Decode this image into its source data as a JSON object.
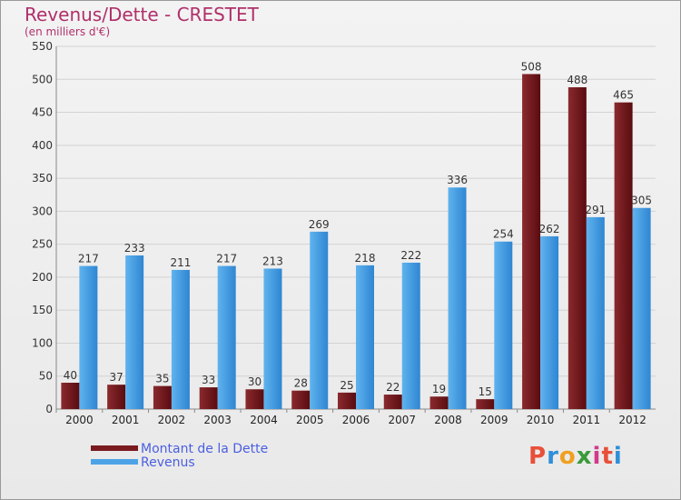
{
  "chart_data": {
    "type": "bar",
    "title": "Revenus/Dette - CRESTET",
    "subtitle": "(en milliers d'€)",
    "categories": [
      "2000",
      "2001",
      "2002",
      "2003",
      "2004",
      "2005",
      "2006",
      "2007",
      "2008",
      "2009",
      "2010",
      "2011",
      "2012"
    ],
    "series": [
      {
        "name": "Montant de la Dette",
        "color": "#7a1a1e",
        "values": [
          40,
          37,
          35,
          33,
          30,
          28,
          25,
          22,
          19,
          15,
          508,
          488,
          465
        ]
      },
      {
        "name": "Revenus",
        "color": "#4da3e6",
        "values": [
          217,
          233,
          211,
          217,
          213,
          269,
          218,
          222,
          336,
          254,
          262,
          291,
          305
        ]
      }
    ],
    "ylim": [
      0,
      550
    ],
    "yticks": [
      0,
      50,
      100,
      150,
      200,
      250,
      300,
      350,
      400,
      450,
      500,
      550
    ],
    "grid": true,
    "legend": "bottom-left"
  },
  "logo": {
    "text": "Proxiti",
    "colors": [
      "#e8503a",
      "#2f8fd8",
      "#f0a020",
      "#3a9a3a",
      "#d23a8a",
      "#e8503a",
      "#2f8fd8"
    ]
  }
}
